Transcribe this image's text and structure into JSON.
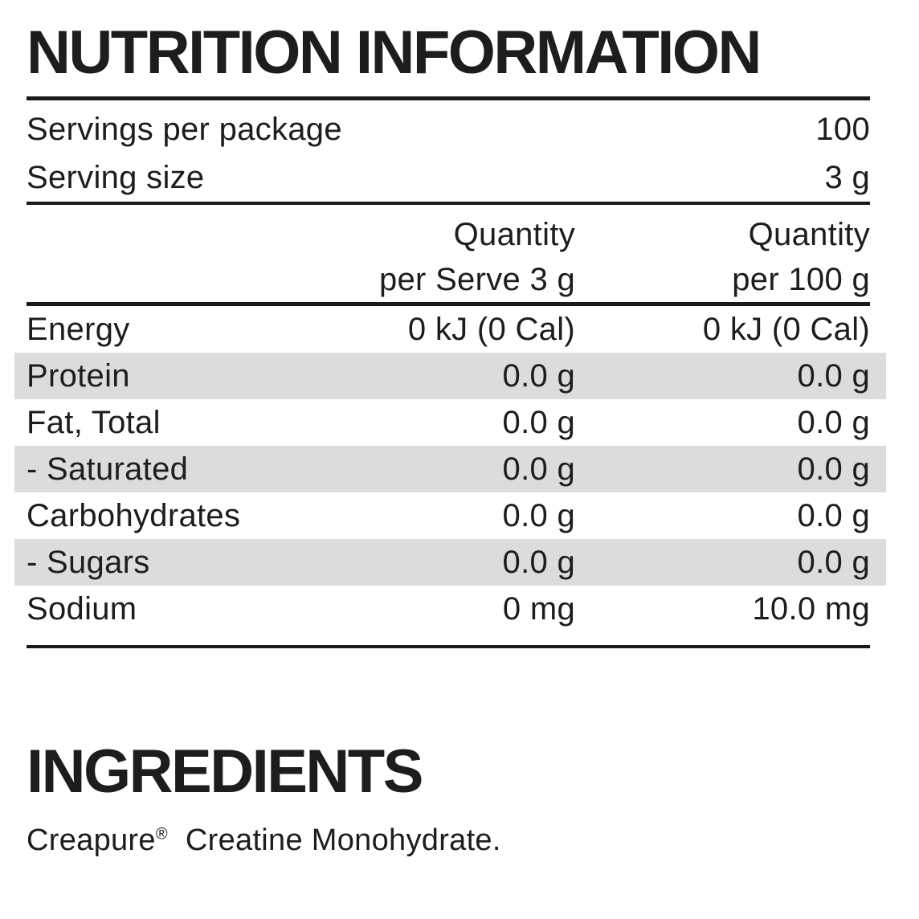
{
  "title": "NUTRITION INFORMATION",
  "serving_info": {
    "rows": [
      {
        "label": "Servings per package",
        "value": "100"
      },
      {
        "label": "Serving size",
        "value": "3 g"
      }
    ]
  },
  "column_headers": {
    "per_serve": {
      "line1": "Quantity",
      "line2": "per Serve 3 g"
    },
    "per_100g": {
      "line1": "Quantity",
      "line2": "per 100 g"
    }
  },
  "nutrients": [
    {
      "name": "Energy",
      "per_serve": "0 kJ (0 Cal)",
      "per_100g": "0 kJ (0 Cal)"
    },
    {
      "name": "Protein",
      "per_serve": "0.0 g",
      "per_100g": "0.0 g"
    },
    {
      "name": "Fat, Total",
      "per_serve": "0.0 g",
      "per_100g": "0.0 g"
    },
    {
      "name": "- Saturated",
      "per_serve": "0.0 g",
      "per_100g": "0.0 g"
    },
    {
      "name": "Carbohydrates",
      "per_serve": "0.0 g",
      "per_100g": "0.0 g"
    },
    {
      "name": "- Sugars",
      "per_serve": "0.0 g",
      "per_100g": "0.0 g"
    },
    {
      "name": "Sodium",
      "per_serve": "0 mg",
      "per_100g": "10.0 mg"
    }
  ],
  "ingredients": {
    "heading": "INGREDIENTS",
    "brand": "Creapure",
    "registered_mark": "®",
    "text": "Creatine Monohydrate."
  },
  "colors": {
    "text": "#1d1d1b",
    "rule": "#1a1a1a",
    "shaded": "#dcdcdc",
    "bg": "#ffffff"
  }
}
